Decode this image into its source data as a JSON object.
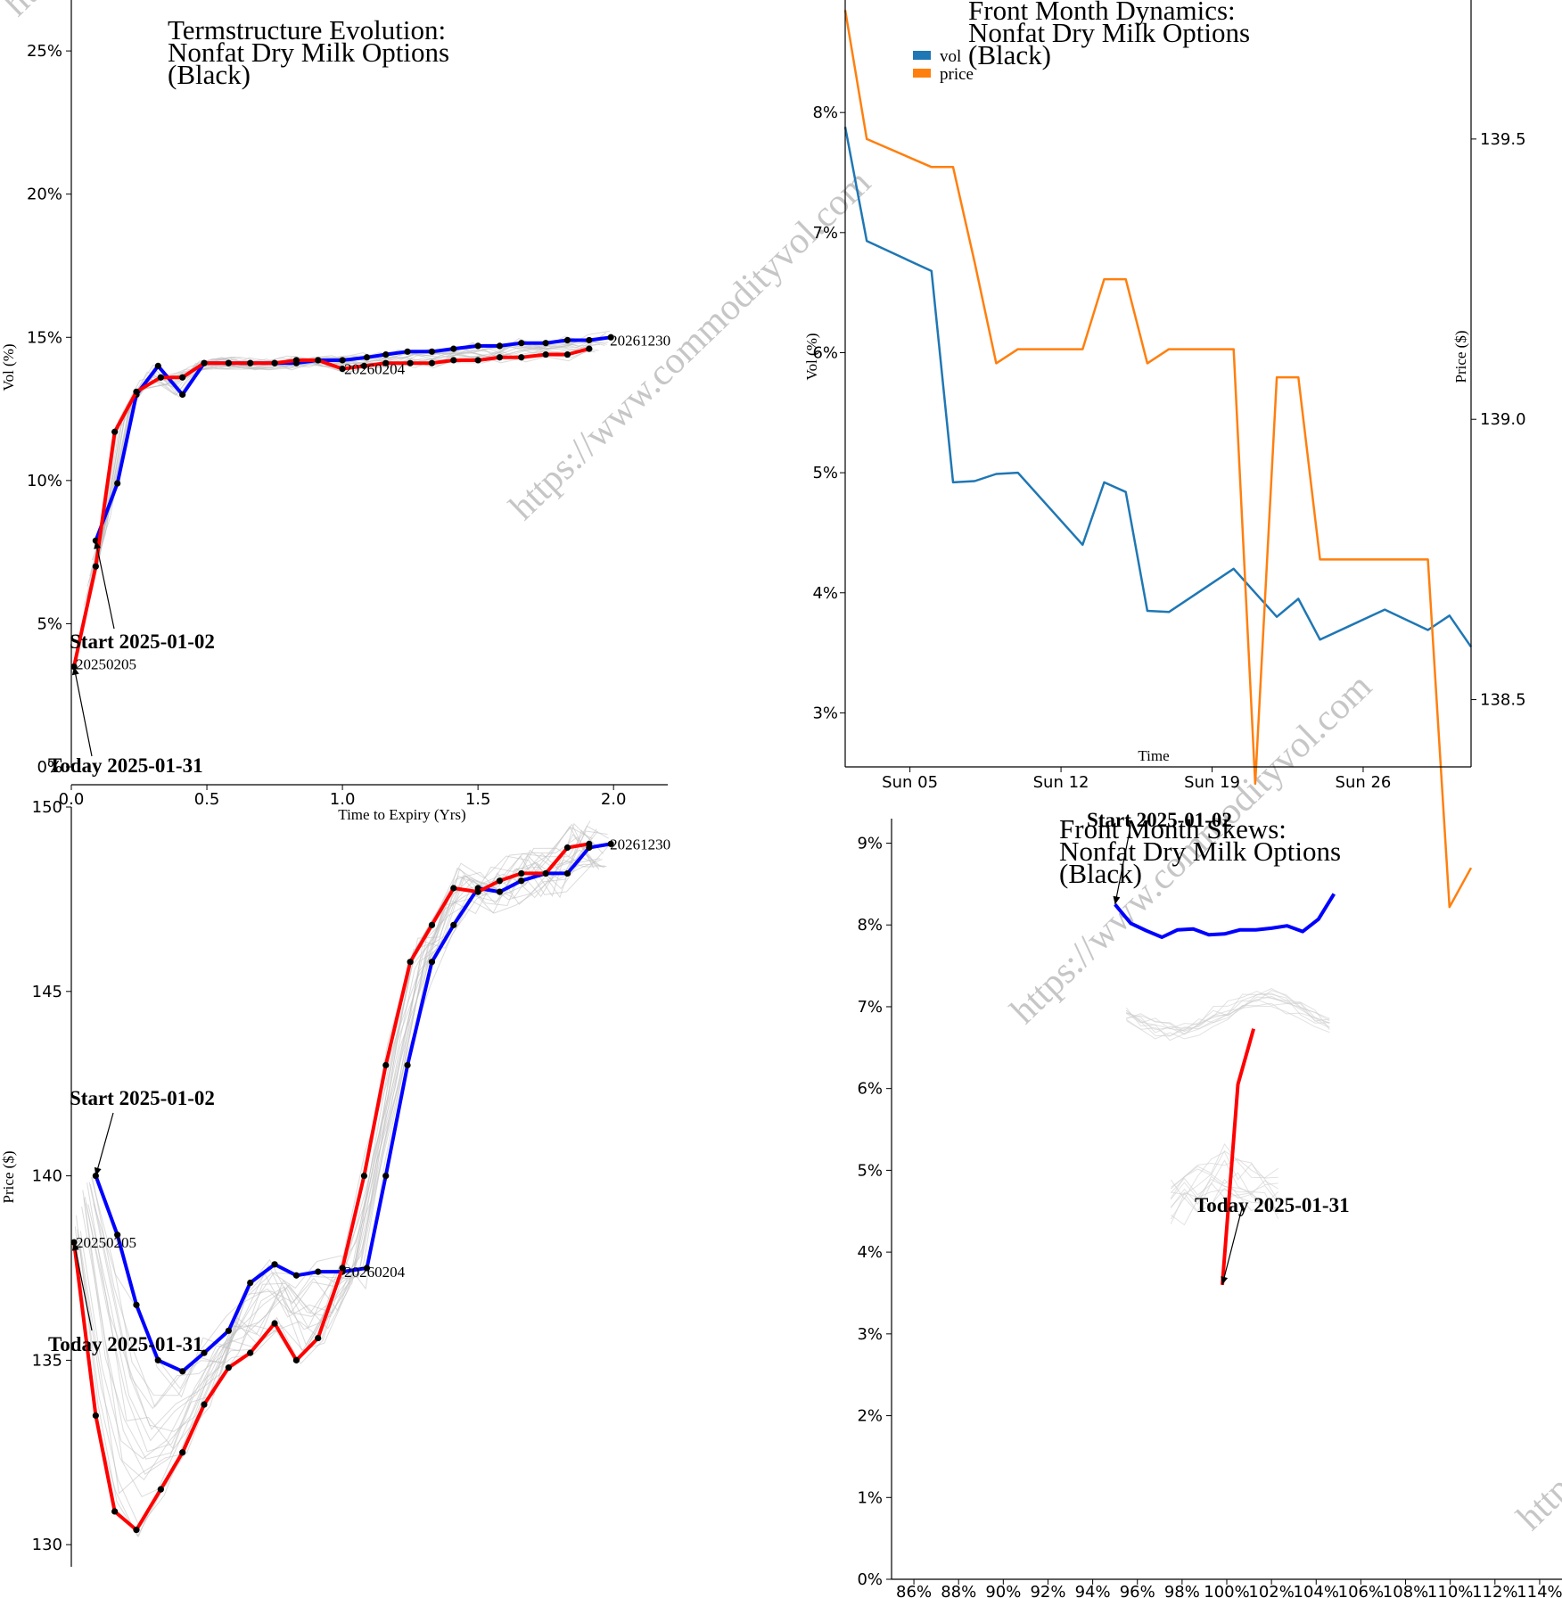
{
  "watermark": "https://www.commodityvol.com",
  "chart_data": [
    {
      "id": "termstructure",
      "type": "line",
      "title": [
        "Termstructure Evolution:",
        "Nonfat Dry Milk Options",
        "(Black)"
      ],
      "xlabel": "Time to Expiry (Yrs)",
      "ylabel": "Vol (%)",
      "xlim": [
        0,
        2.2
      ],
      "ylim": [
        0,
        26
      ],
      "x_ticks": [
        "0.0",
        "0.5",
        "1.0",
        "1.5",
        "2.0"
      ],
      "y_ticks": [
        "0%",
        "5%",
        "10%",
        "15%",
        "20%",
        "25%"
      ],
      "expiry_labels": [
        {
          "text": "20250205",
          "x": 0.01,
          "y": 3.6
        },
        {
          "text": "20260204",
          "x": 1.0,
          "y": 13.9
        },
        {
          "text": "20261230",
          "x": 1.98,
          "y": 14.9
        }
      ],
      "annotations": [
        {
          "text": "Start 2025-01-02",
          "point_x": 0.09,
          "point_y": 7.9
        },
        {
          "text": "Today 2025-01-31",
          "point_x": 0.01,
          "point_y": 3.5
        }
      ],
      "series": [
        {
          "name": "Start 2025-01-02",
          "color": "#0000ff",
          "x": [
            0.09,
            0.17,
            0.24,
            0.32,
            0.41,
            0.49,
            0.58,
            0.66,
            0.75,
            0.83,
            0.91,
            1.0,
            1.09,
            1.16,
            1.24,
            1.33,
            1.41,
            1.5,
            1.58,
            1.66,
            1.75,
            1.83,
            1.91,
            1.99
          ],
          "y": [
            7.9,
            9.9,
            13.0,
            14.0,
            13.0,
            14.1,
            14.1,
            14.1,
            14.1,
            14.1,
            14.2,
            14.2,
            14.3,
            14.4,
            14.5,
            14.5,
            14.6,
            14.7,
            14.7,
            14.8,
            14.8,
            14.9,
            14.9,
            15.0
          ]
        },
        {
          "name": "Today 2025-01-31",
          "color": "#ff0000",
          "x": [
            0.01,
            0.09,
            0.16,
            0.24,
            0.33,
            0.41,
            0.49,
            0.58,
            0.66,
            0.75,
            0.83,
            0.91,
            1.0,
            1.08,
            1.16,
            1.25,
            1.33,
            1.41,
            1.5,
            1.58,
            1.66,
            1.75,
            1.83,
            1.91
          ],
          "y": [
            3.5,
            7.0,
            11.7,
            13.1,
            13.6,
            13.6,
            14.1,
            14.1,
            14.1,
            14.1,
            14.2,
            14.2,
            13.9,
            14.0,
            14.1,
            14.1,
            14.1,
            14.2,
            14.2,
            14.3,
            14.3,
            14.4,
            14.4,
            14.6
          ]
        }
      ]
    },
    {
      "id": "frontmonth",
      "type": "line",
      "title": [
        "Front Month Dynamics:",
        "Nonfat Dry Milk Options",
        "(Black)"
      ],
      "xlabel": "Time",
      "ylabel": "Vol (%)",
      "y2label": "Price ($)",
      "ylim": [
        2.55,
        8.9
      ],
      "y2lim": [
        138.38,
        139.74
      ],
      "x_ticks": [
        "Sun 05",
        "Sun 12",
        "Sun 19",
        "Sun 26"
      ],
      "y_ticks": [
        "3%",
        "4%",
        "5%",
        "6%",
        "7%",
        "8%"
      ],
      "y2_ticks": [
        "138.5",
        "139.0",
        "139.5"
      ],
      "x_day_range": [
        2,
        31
      ],
      "x_tick_days": [
        5,
        12,
        19,
        26
      ],
      "legend": [
        "vol",
        "price"
      ],
      "legend_position": "top-left",
      "series": [
        {
          "name": "vol",
          "color": "#1f77b4",
          "x": [
            2,
            3,
            6,
            7,
            8,
            9,
            10,
            13,
            14,
            15,
            16,
            17,
            20,
            21,
            22,
            23,
            24,
            27,
            29,
            30,
            31
          ],
          "y": [
            7.88,
            6.93,
            6.68,
            4.92,
            4.93,
            4.99,
            5.0,
            4.4,
            4.92,
            4.84,
            3.85,
            3.84,
            4.2,
            4.0,
            3.8,
            3.95,
            3.61,
            3.86,
            3.69,
            3.81,
            3.55
          ]
        },
        {
          "name": "price",
          "color": "#ff7f0e",
          "x": [
            2,
            3,
            6,
            7,
            8,
            9,
            10,
            13,
            14,
            15,
            16,
            17,
            20,
            21,
            22,
            23,
            24,
            27,
            29,
            30,
            31
          ],
          "y": [
            139.73,
            139.5,
            139.45,
            139.45,
            139.28,
            139.1,
            139.125,
            139.125,
            139.25,
            139.25,
            139.1,
            139.125,
            139.125,
            138.35,
            139.075,
            139.075,
            138.75,
            138.75,
            138.75,
            138.13,
            138.2
          ]
        }
      ]
    },
    {
      "id": "prices",
      "type": "line",
      "title": [],
      "xlabel": "",
      "ylabel": "Price ($)",
      "xlim": [
        0,
        2.2
      ],
      "ylim": [
        129.4,
        150
      ],
      "y_ticks": [
        "130",
        "135",
        "140",
        "145",
        "150"
      ],
      "expiry_labels": [
        {
          "text": "20250205",
          "x": 0.01,
          "y": 138.2
        },
        {
          "text": "20260204",
          "x": 1.0,
          "y": 137.4
        },
        {
          "text": "20261230",
          "x": 1.98,
          "y": 149.0
        }
      ],
      "annotations": [
        {
          "text": "Start 2025-01-02",
          "point_x": 0.09,
          "point_y": 140.0
        },
        {
          "text": "Today 2025-01-31",
          "point_x": 0.01,
          "point_y": 138.2
        }
      ],
      "series": [
        {
          "name": "Start 2025-01-02",
          "color": "#0000ff",
          "x": [
            0.09,
            0.17,
            0.24,
            0.32,
            0.41,
            0.49,
            0.58,
            0.66,
            0.75,
            0.83,
            0.91,
            1.0,
            1.09,
            1.16,
            1.24,
            1.33,
            1.41,
            1.5,
            1.58,
            1.66,
            1.75,
            1.83,
            1.91,
            1.99
          ],
          "y": [
            140.0,
            138.4,
            136.5,
            135.0,
            134.7,
            135.2,
            135.8,
            137.1,
            137.6,
            137.3,
            137.4,
            137.4,
            137.5,
            140.0,
            143.0,
            145.8,
            146.8,
            147.8,
            147.7,
            148.0,
            148.2,
            148.2,
            148.9,
            149.0
          ]
        },
        {
          "name": "Today 2025-01-31",
          "color": "#ff0000",
          "x": [
            0.01,
            0.09,
            0.16,
            0.24,
            0.33,
            0.41,
            0.49,
            0.58,
            0.66,
            0.75,
            0.83,
            0.91,
            1.0,
            1.08,
            1.16,
            1.25,
            1.33,
            1.41,
            1.5,
            1.58,
            1.66,
            1.75,
            1.83,
            1.91
          ],
          "y": [
            138.2,
            133.5,
            130.9,
            130.4,
            131.5,
            132.5,
            133.8,
            134.8,
            135.2,
            136.0,
            135.0,
            135.6,
            137.5,
            140.0,
            143.0,
            145.8,
            146.8,
            147.8,
            147.7,
            148.0,
            148.2,
            148.2,
            148.9,
            149.0
          ]
        }
      ]
    },
    {
      "id": "skews",
      "type": "line",
      "title": [
        "Front Month Skews:",
        "Nonfat Dry Milk Options",
        "(Black)"
      ],
      "xlabel": "",
      "ylabel": "",
      "xlim": [
        85,
        115
      ],
      "ylim": [
        0,
        9.3
      ],
      "x_ticks": [
        "86%",
        "88%",
        "90%",
        "92%",
        "94%",
        "96%",
        "98%",
        "100%",
        "102%",
        "104%",
        "106%",
        "108%",
        "110%",
        "112%",
        "114%"
      ],
      "y_ticks": [
        "0%",
        "1%",
        "2%",
        "3%",
        "4%",
        "5%",
        "6%",
        "7%",
        "8%",
        "9%"
      ],
      "annotations": [
        {
          "text": "Start 2025-01-02",
          "point_x": 95.0,
          "point_y": 8.25
        },
        {
          "text": "Today 2025-01-31",
          "point_x": 99.8,
          "point_y": 3.6
        }
      ],
      "series": [
        {
          "name": "Start 2025-01-02",
          "color": "#0000ff",
          "x": [
            95.0,
            95.7,
            96.4,
            97.1,
            97.8,
            98.5,
            99.2,
            99.9,
            100.6,
            101.3,
            102.0,
            102.7,
            103.4,
            104.1,
            104.8
          ],
          "y": [
            8.25,
            8.02,
            7.93,
            7.85,
            7.94,
            7.95,
            7.88,
            7.89,
            7.94,
            7.94,
            7.96,
            7.99,
            7.92,
            8.07,
            8.38
          ]
        },
        {
          "name": "Today 2025-01-31",
          "color": "#ff0000",
          "x": [
            99.8,
            100.5,
            101.2
          ],
          "y": [
            3.6,
            6.05,
            6.73
          ]
        }
      ]
    }
  ]
}
